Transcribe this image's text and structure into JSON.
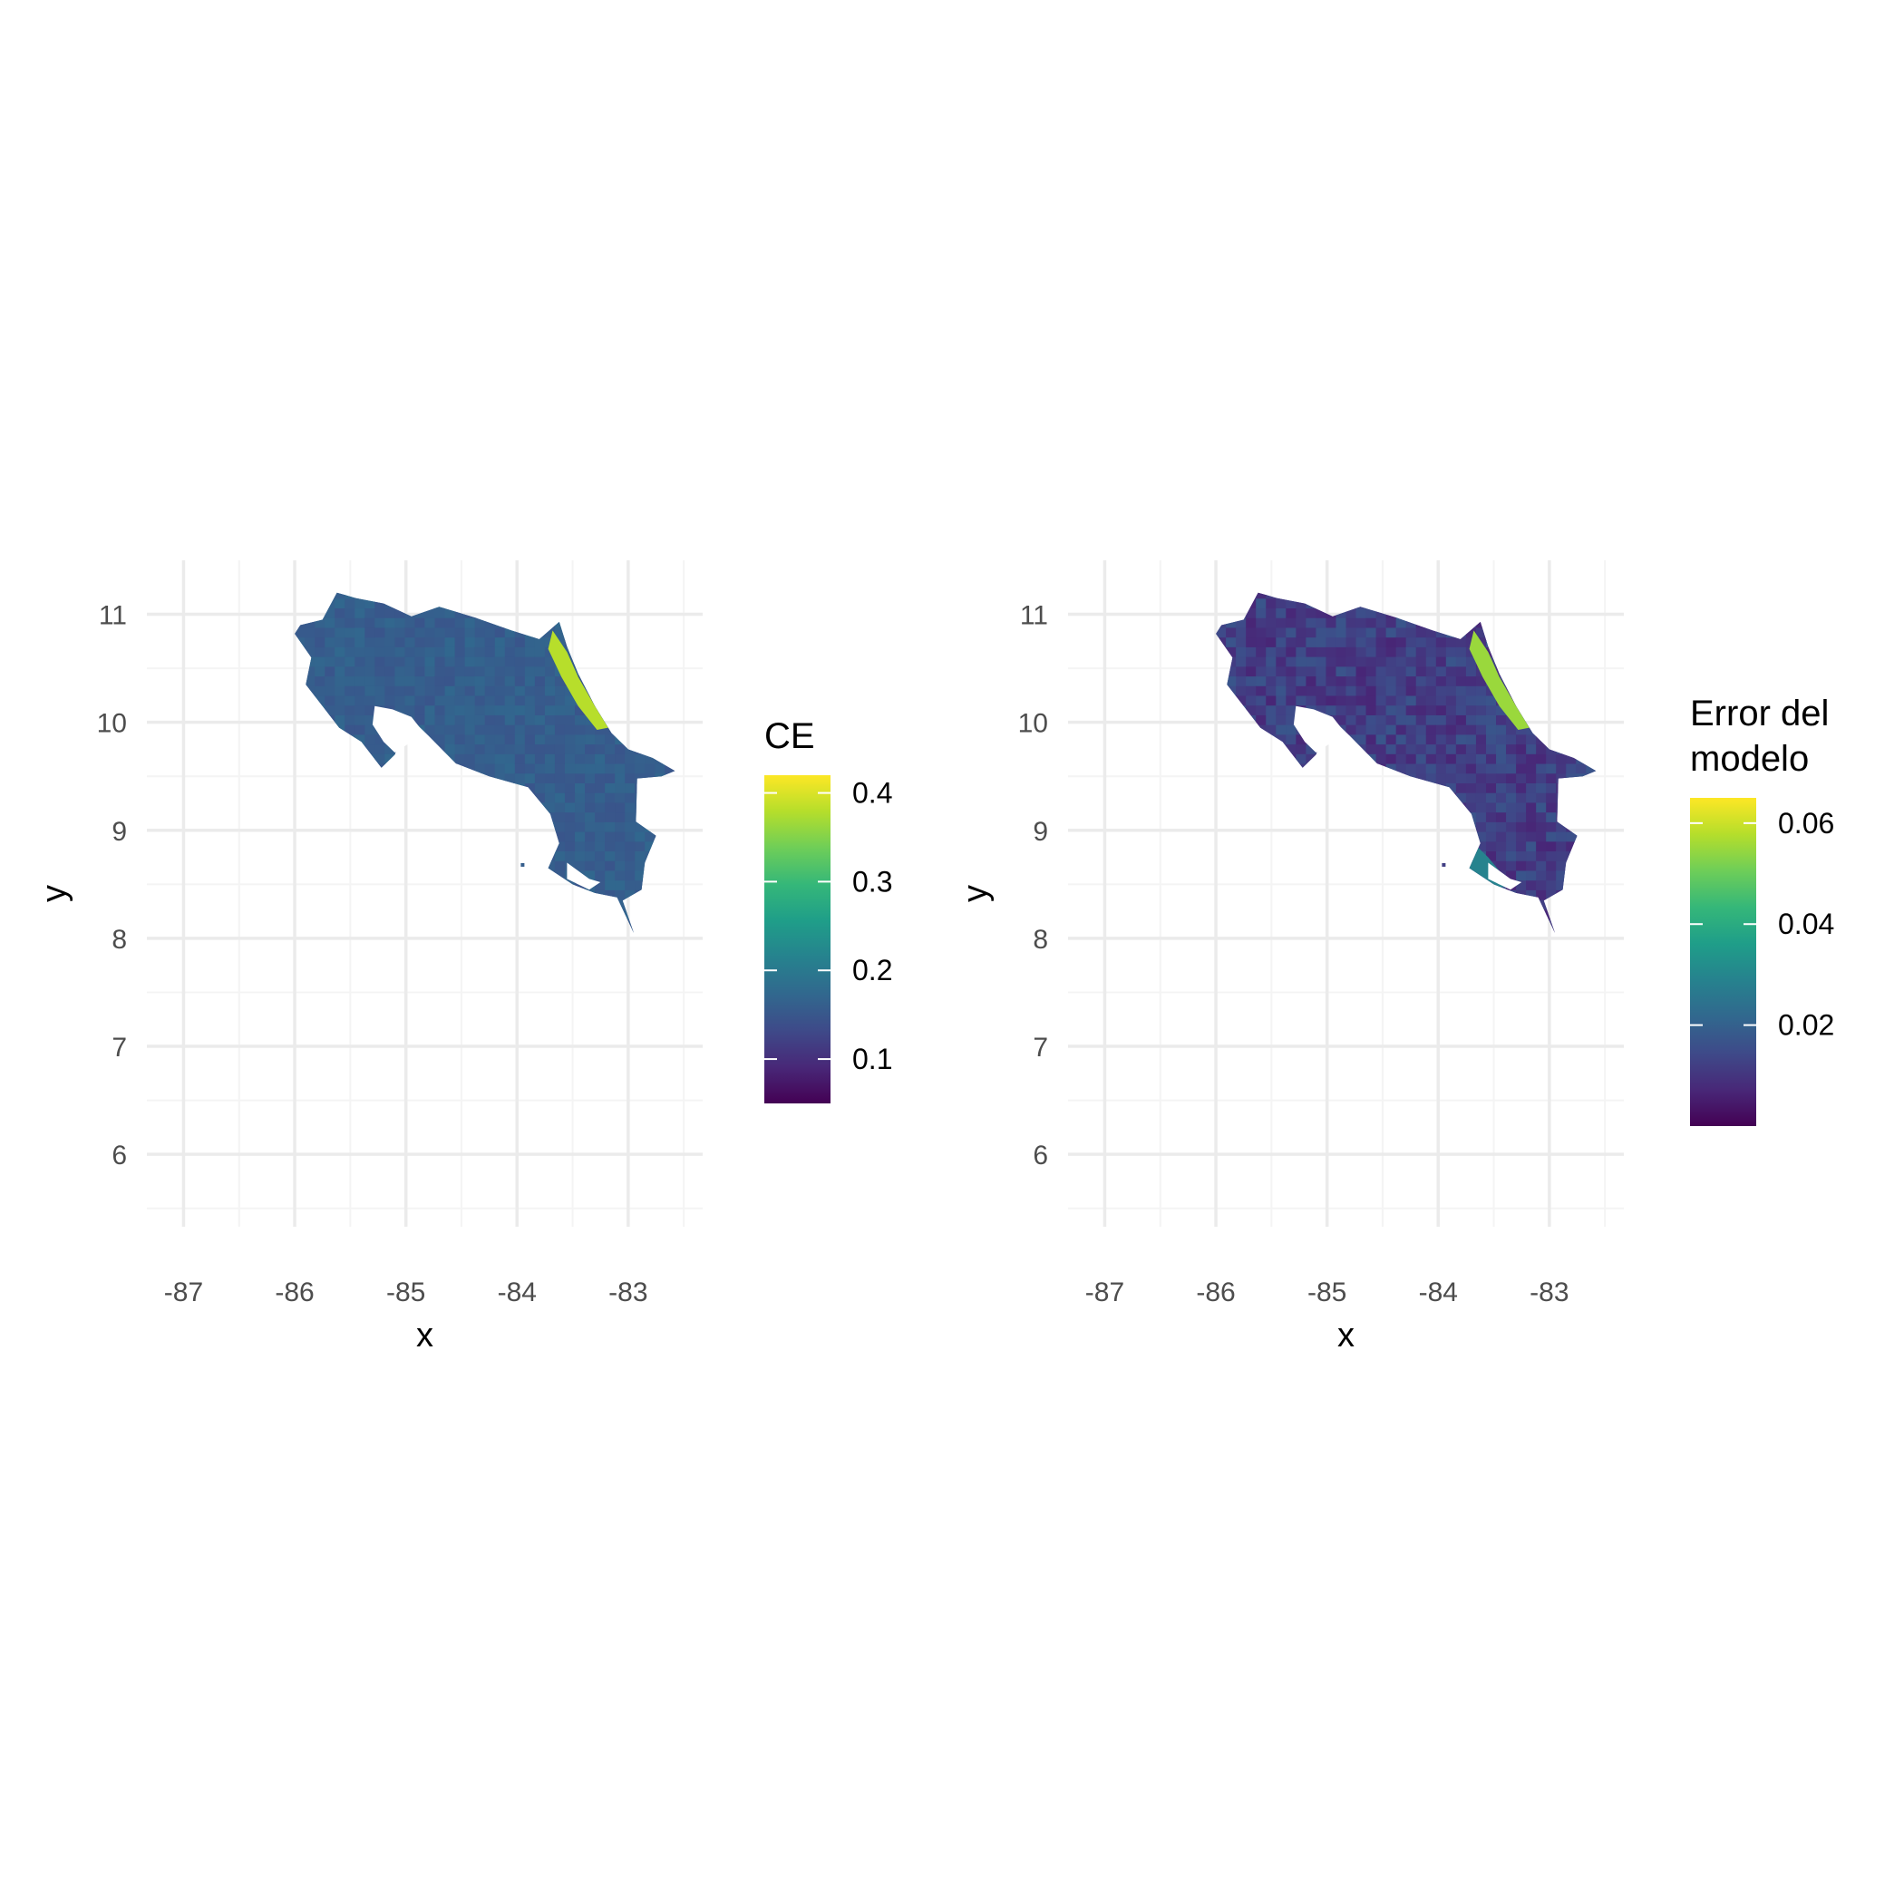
{
  "panels": [
    {
      "id": "ce",
      "x_axis_title": "x",
      "y_axis_title": "y",
      "x_ticks": [
        -87,
        -86,
        -85,
        -84,
        -83
      ],
      "y_ticks": [
        6,
        7,
        8,
        9,
        10,
        11
      ],
      "x_range": [
        -87.33,
        -82.33
      ],
      "y_range": [
        5.33,
        11.5
      ],
      "legend": {
        "title_lines": [
          "CE"
        ],
        "min": 0.05,
        "max": 0.42,
        "breaks": [
          0.1,
          0.2,
          0.3,
          0.4
        ],
        "labels": [
          "0.1",
          "0.2",
          "0.3",
          "0.4"
        ]
      },
      "hotspot_value": 0.38,
      "base_value": 0.16
    },
    {
      "id": "error",
      "x_axis_title": "x",
      "y_axis_title": "y",
      "x_ticks": [
        -87,
        -86,
        -85,
        -84,
        -83
      ],
      "y_ticks": [
        6,
        7,
        8,
        9,
        10,
        11
      ],
      "x_range": [
        -87.33,
        -82.33
      ],
      "y_range": [
        5.33,
        11.5
      ],
      "legend": {
        "title_lines": [
          "Error del",
          "modelo"
        ],
        "min": 0.0,
        "max": 0.065,
        "breaks": [
          0.02,
          0.04,
          0.06
        ],
        "labels": [
          "0.02",
          "0.04",
          "0.06"
        ]
      },
      "hotspot_value": 0.055,
      "base_value": 0.012
    }
  ],
  "colors": {
    "viridis": [
      "#440154",
      "#482878",
      "#3e4a89",
      "#31688e",
      "#26828e",
      "#1f9e89",
      "#35b779",
      "#6ece58",
      "#b5de2b",
      "#fde725"
    ],
    "grid_major": "#ebebeb",
    "grid_minor": "#f4f4f4"
  },
  "map": {
    "outline": [
      [
        -85.95,
        10.9
      ],
      [
        -85.75,
        10.95
      ],
      [
        -85.62,
        11.2
      ],
      [
        -85.45,
        11.15
      ],
      [
        -85.2,
        11.1
      ],
      [
        -84.95,
        10.98
      ],
      [
        -84.7,
        11.07
      ],
      [
        -84.38,
        10.97
      ],
      [
        -84.05,
        10.85
      ],
      [
        -83.8,
        10.77
      ],
      [
        -83.62,
        10.93
      ],
      [
        -83.55,
        10.7
      ],
      [
        -83.45,
        10.45
      ],
      [
        -83.3,
        10.15
      ],
      [
        -83.15,
        9.9
      ],
      [
        -83.0,
        9.75
      ],
      [
        -82.78,
        9.67
      ],
      [
        -82.58,
        9.55
      ],
      [
        -82.7,
        9.5
      ],
      [
        -82.92,
        9.48
      ],
      [
        -82.93,
        9.08
      ],
      [
        -82.75,
        8.95
      ],
      [
        -82.85,
        8.7
      ],
      [
        -82.88,
        8.45
      ],
      [
        -83.05,
        8.35
      ],
      [
        -82.95,
        8.05
      ],
      [
        -83.1,
        8.38
      ],
      [
        -83.3,
        8.42
      ],
      [
        -83.5,
        8.5
      ],
      [
        -83.72,
        8.65
      ],
      [
        -83.62,
        8.88
      ],
      [
        -83.7,
        9.15
      ],
      [
        -83.9,
        9.4
      ],
      [
        -84.25,
        9.5
      ],
      [
        -84.55,
        9.62
      ],
      [
        -84.8,
        9.88
      ],
      [
        -84.95,
        10.03
      ],
      [
        -85.05,
        9.85
      ],
      [
        -85.1,
        9.7
      ],
      [
        -85.22,
        9.58
      ],
      [
        -85.4,
        9.82
      ],
      [
        -85.6,
        9.95
      ],
      [
        -85.75,
        10.15
      ],
      [
        -85.9,
        10.35
      ],
      [
        -85.85,
        10.6
      ],
      [
        -86.0,
        10.82
      ]
    ],
    "gulf": [
      [
        -85.28,
        10.15
      ],
      [
        -85.12,
        10.12
      ],
      [
        -84.95,
        10.05
      ],
      [
        -84.85,
        9.92
      ],
      [
        -84.95,
        9.82
      ],
      [
        -85.1,
        9.72
      ],
      [
        -85.2,
        9.82
      ],
      [
        -85.3,
        9.98
      ]
    ],
    "bay": [
      [
        -83.55,
        8.7
      ],
      [
        -83.35,
        8.55
      ],
      [
        -83.25,
        8.52
      ],
      [
        -83.35,
        8.45
      ],
      [
        -83.55,
        8.55
      ]
    ],
    "hotspot_coast": [
      [
        -83.68,
        10.85
      ],
      [
        -83.55,
        10.65
      ],
      [
        -83.45,
        10.42
      ],
      [
        -83.3,
        10.15
      ],
      [
        -83.18,
        9.95
      ],
      [
        -83.28,
        9.93
      ],
      [
        -83.45,
        10.15
      ],
      [
        -83.6,
        10.42
      ],
      [
        -83.72,
        10.68
      ]
    ],
    "island": [
      -83.95,
      8.68
    ]
  }
}
